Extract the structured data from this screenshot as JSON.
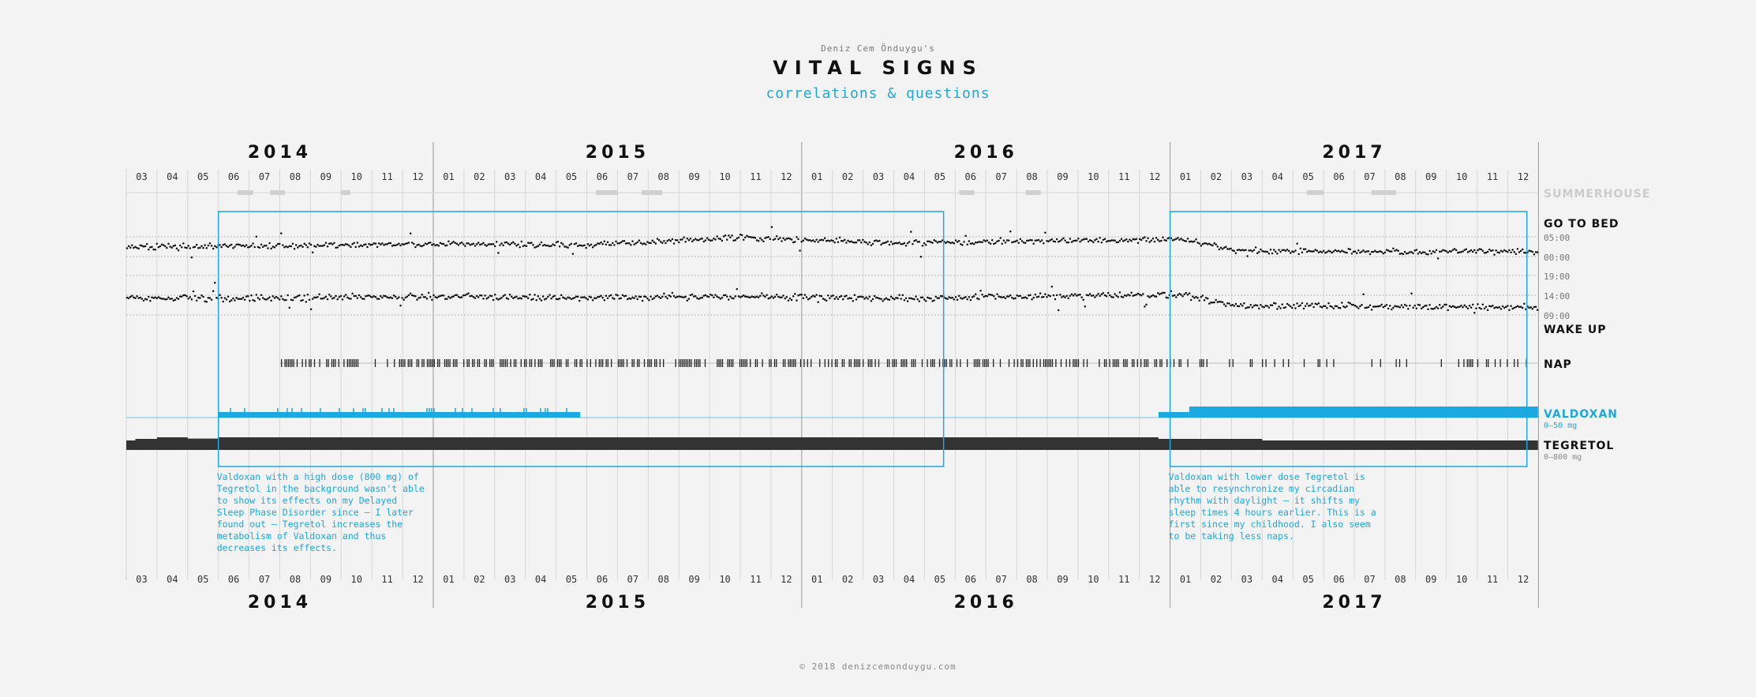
{
  "header": {
    "byline": "Deniz Cem Önduygu's",
    "title": "VITAL SIGNS",
    "subtitle": "correlations & questions"
  },
  "footer": "© 2018 denizcemonduygu.com",
  "colors": {
    "accent": "#1aa9e0",
    "ink": "#111111",
    "grid": "#d6d6d6",
    "muted": "#cccccc"
  },
  "chart_data": {
    "type": "timeline",
    "years": [
      {
        "label": "2014",
        "months": [
          "03",
          "04",
          "05",
          "06",
          "07",
          "08",
          "09",
          "10",
          "11",
          "12"
        ]
      },
      {
        "label": "2015",
        "months": [
          "01",
          "02",
          "03",
          "04",
          "05",
          "06",
          "07",
          "08",
          "09",
          "10",
          "11",
          "12"
        ]
      },
      {
        "label": "2016",
        "months": [
          "01",
          "02",
          "03",
          "04",
          "05",
          "06",
          "07",
          "08",
          "09",
          "10",
          "11",
          "12"
        ]
      },
      {
        "label": "2017",
        "months": [
          "01",
          "02",
          "03",
          "04",
          "05",
          "06",
          "07",
          "08",
          "09",
          "10",
          "11",
          "12"
        ]
      }
    ],
    "tracks": [
      {
        "id": "summerhouse",
        "label": "SUMMERHOUSE"
      },
      {
        "id": "go_to_bed",
        "label": "GO TO BED",
        "ticks": [
          "05:00",
          "00:00",
          "19:00"
        ]
      },
      {
        "id": "wake_up",
        "label": "WAKE UP",
        "ticks": [
          "14:00",
          "09:00"
        ]
      },
      {
        "id": "nap",
        "label": "NAP"
      },
      {
        "id": "valdoxan",
        "label": "VALDOXAN",
        "range": "0–50 mg"
      },
      {
        "id": "tegretol",
        "label": "TEGRETOL",
        "range": "0–800 mg"
      }
    ],
    "summerhouse_periods": [
      [
        "2014-06-20",
        "2014-07-05"
      ],
      [
        "2014-07-22",
        "2014-08-06"
      ],
      [
        "2014-10-01",
        "2014-10-10"
      ],
      [
        "2015-06-10",
        "2015-07-01"
      ],
      [
        "2015-07-25",
        "2015-08-15"
      ],
      [
        "2016-06-05",
        "2016-06-20"
      ],
      [
        "2016-08-10",
        "2016-08-25"
      ],
      [
        "2017-05-15",
        "2017-06-01"
      ],
      [
        "2017-07-18",
        "2017-08-12"
      ]
    ],
    "bedtime_trend": [
      [
        "2014-03-01",
        2.3
      ],
      [
        "2014-07-01",
        2.6
      ],
      [
        "2015-01-01",
        3.2
      ],
      [
        "2015-06-01",
        2.9
      ],
      [
        "2015-11-01",
        4.8
      ],
      [
        "2016-04-01",
        3.4
      ],
      [
        "2016-10-01",
        4.0
      ],
      [
        "2016-12-31",
        4.3
      ],
      [
        "2017-01-15",
        4.2
      ],
      [
        "2017-03-01",
        1.6
      ],
      [
        "2017-07-01",
        1.2
      ],
      [
        "2017-12-31",
        1.4
      ]
    ],
    "wakeup_trend": [
      [
        "2014-03-01",
        13.3
      ],
      [
        "2014-07-01",
        13.2
      ],
      [
        "2015-01-01",
        13.6
      ],
      [
        "2015-06-01",
        13.3
      ],
      [
        "2015-11-01",
        13.7
      ],
      [
        "2016-04-01",
        13.2
      ],
      [
        "2016-10-01",
        13.9
      ],
      [
        "2016-12-31",
        14.2
      ],
      [
        "2017-01-15",
        14.0
      ],
      [
        "2017-03-01",
        11.4
      ],
      [
        "2017-07-01",
        11.2
      ],
      [
        "2017-12-31",
        11.0
      ]
    ],
    "nap_period": [
      "2014-08-01",
      "2017-12-31"
    ],
    "valdoxan_periods": [
      {
        "start": "2014-06-01",
        "end": "2015-05-25",
        "mg": 25
      },
      {
        "start": "2016-12-20",
        "end": "2017-01-20",
        "mg": 25
      },
      {
        "start": "2017-01-20",
        "end": "2017-12-31",
        "mg": 50
      }
    ],
    "tegretol_dose": [
      [
        "2014-03-01",
        600
      ],
      [
        "2014-03-10",
        700
      ],
      [
        "2014-04-01",
        800
      ],
      [
        "2014-05-01",
        720
      ],
      [
        "2014-06-01",
        800
      ],
      [
        "2016-12-01",
        800
      ],
      [
        "2016-12-20",
        700
      ],
      [
        "2017-04-01",
        600
      ],
      [
        "2017-12-31",
        600
      ]
    ],
    "highlights": [
      {
        "start": "2014-06-01",
        "end": "2016-05-20",
        "note": "Valdoxan with a high dose (800 mg) of Tegretol in the background wasn't able to show its effects on my Delayed Sleep Phase Disorder since – I later found out – Tegretol increases the metabolism of Valdoxan and thus decreases its effects."
      },
      {
        "start": "2017-01-01",
        "end": "2017-12-20",
        "note": "Valdoxan with lower dose Tegretol is able to resynchronize my circadian rhythm with daylight – it shifts my sleep times 4 hours earlier. This is a first since my childhood. I also seem to be taking less naps."
      }
    ]
  }
}
